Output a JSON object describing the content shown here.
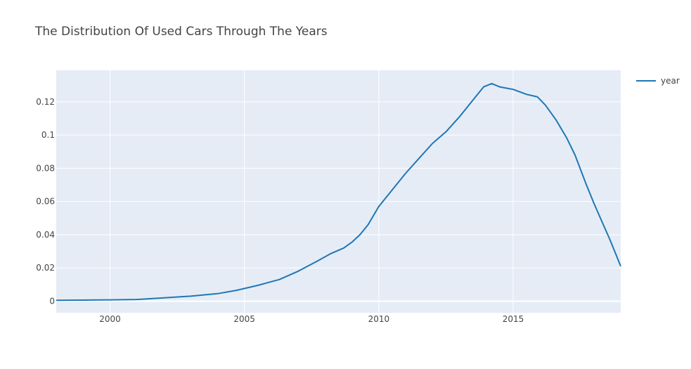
{
  "chart_data": {
    "type": "line",
    "title": "The Distribution Of Used Cars Through The Years",
    "xlabel": "",
    "ylabel": "",
    "xlim": [
      1998,
      2019
    ],
    "ylim": [
      -0.007,
      0.139
    ],
    "x_ticks": [
      2000,
      2005,
      2010,
      2015
    ],
    "y_ticks": [
      0,
      0.02,
      0.04,
      0.06,
      0.08,
      0.1,
      0.12
    ],
    "y_tick_labels": [
      "0",
      "0.02",
      "0.04",
      "0.06",
      "0.08",
      "0.1",
      "0.12"
    ],
    "grid": true,
    "legend_position": "top-right",
    "plot_bg": "#e5ecf6",
    "series": [
      {
        "name": "year",
        "color": "#1f77b4",
        "x": [
          1998,
          1999,
          2000,
          2001,
          2002,
          2003,
          2004,
          2004.7,
          2005.5,
          2006.3,
          2007,
          2007.7,
          2008.2,
          2008.7,
          2009,
          2009.3,
          2009.6,
          2010,
          2010.5,
          2011,
          2011.5,
          2012,
          2012.5,
          2013,
          2013.5,
          2013.9,
          2014.2,
          2014.5,
          2015,
          2015.5,
          2015.9,
          2016.2,
          2016.6,
          2017,
          2017.3,
          2017.7,
          2018,
          2018.3,
          2018.6,
          2019
        ],
        "y": [
          0.0005,
          0.0006,
          0.0008,
          0.001,
          0.002,
          0.003,
          0.0045,
          0.0065,
          0.0095,
          0.013,
          0.018,
          0.024,
          0.0285,
          0.032,
          0.0355,
          0.04,
          0.046,
          0.057,
          0.067,
          0.077,
          0.086,
          0.095,
          0.102,
          0.111,
          0.121,
          0.129,
          0.131,
          0.129,
          0.1275,
          0.1245,
          0.123,
          0.118,
          0.109,
          0.098,
          0.088,
          0.071,
          0.059,
          0.048,
          0.037,
          0.021
        ]
      }
    ]
  }
}
